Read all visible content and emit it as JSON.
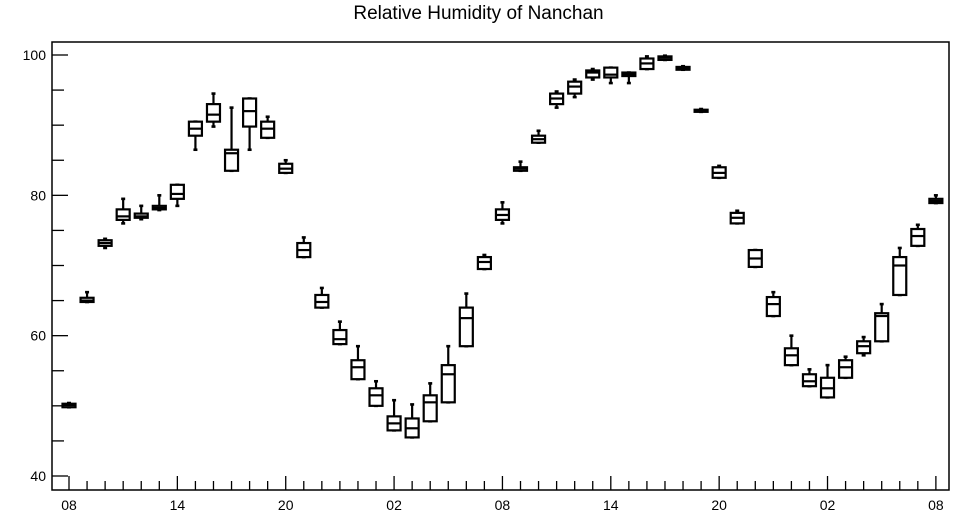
{
  "chart_data": {
    "type": "boxplot",
    "title": "Relative Humidity of Nanchan",
    "xlabel": "",
    "ylabel": "",
    "ylim": [
      38,
      102
    ],
    "yticks": [
      40,
      60,
      80,
      100
    ],
    "x_tick_labels": [
      "08",
      "14",
      "20",
      "02",
      "08",
      "14",
      "20",
      "02",
      "08"
    ],
    "x_tick_hours": [
      0,
      6,
      12,
      18,
      24,
      30,
      36,
      42,
      48
    ],
    "grid": false,
    "legend": "none",
    "series": [
      {
        "boxes": [
          {
            "hour": 0,
            "min": 49.8,
            "q1": 49.8,
            "median": 50.1,
            "q3": 50.3,
            "max": 50.4
          },
          {
            "hour": 1,
            "min": 64.8,
            "q1": 64.8,
            "median": 65.0,
            "q3": 65.4,
            "max": 66.2
          },
          {
            "hour": 2,
            "min": 72.5,
            "q1": 72.8,
            "median": 73.2,
            "q3": 73.6,
            "max": 73.8
          },
          {
            "hour": 3,
            "min": 76.0,
            "q1": 76.5,
            "median": 77.0,
            "q3": 78.0,
            "max": 79.5
          },
          {
            "hour": 4,
            "min": 76.6,
            "q1": 76.8,
            "median": 77.0,
            "q3": 77.4,
            "max": 78.5
          },
          {
            "hour": 5,
            "min": 77.9,
            "q1": 78.0,
            "median": 78.2,
            "q3": 78.5,
            "max": 80.0
          },
          {
            "hour": 6,
            "min": 78.5,
            "q1": 79.5,
            "median": 80.2,
            "q3": 81.5,
            "max": 81.5
          },
          {
            "hour": 7,
            "min": 86.5,
            "q1": 88.5,
            "median": 89.5,
            "q3": 90.5,
            "max": 90.5
          },
          {
            "hour": 8,
            "min": 89.8,
            "q1": 90.5,
            "median": 91.5,
            "q3": 93.0,
            "max": 94.5
          },
          {
            "hour": 9,
            "min": 83.5,
            "q1": 83.5,
            "median": 86.0,
            "q3": 86.5,
            "max": 92.5
          },
          {
            "hour": 10,
            "min": 86.5,
            "q1": 89.8,
            "median": 92.0,
            "q3": 93.8,
            "max": 93.8
          },
          {
            "hour": 11,
            "min": 88.2,
            "q1": 88.2,
            "median": 89.5,
            "q3": 90.5,
            "max": 91.2
          },
          {
            "hour": 12,
            "min": 83.2,
            "q1": 83.2,
            "median": 83.8,
            "q3": 84.5,
            "max": 85.0
          },
          {
            "hour": 13,
            "min": 71.2,
            "q1": 71.2,
            "median": 72.2,
            "q3": 73.2,
            "max": 74.0
          },
          {
            "hour": 14,
            "min": 64.0,
            "q1": 64.0,
            "median": 64.8,
            "q3": 65.8,
            "max": 66.8
          },
          {
            "hour": 15,
            "min": 58.8,
            "q1": 58.8,
            "median": 59.5,
            "q3": 60.8,
            "max": 62.0
          },
          {
            "hour": 16,
            "min": 53.8,
            "q1": 53.8,
            "median": 55.5,
            "q3": 56.5,
            "max": 58.5
          },
          {
            "hour": 17,
            "min": 50.0,
            "q1": 50.0,
            "median": 51.5,
            "q3": 52.5,
            "max": 53.5
          },
          {
            "hour": 18,
            "min": 46.5,
            "q1": 46.5,
            "median": 47.5,
            "q3": 48.5,
            "max": 50.8
          },
          {
            "hour": 19,
            "min": 45.5,
            "q1": 45.5,
            "median": 46.8,
            "q3": 48.2,
            "max": 50.2
          },
          {
            "hour": 20,
            "min": 47.8,
            "q1": 47.8,
            "median": 50.5,
            "q3": 51.5,
            "max": 53.2
          },
          {
            "hour": 21,
            "min": 50.5,
            "q1": 50.5,
            "median": 54.5,
            "q3": 55.8,
            "max": 58.5
          },
          {
            "hour": 22,
            "min": 58.5,
            "q1": 58.5,
            "median": 62.5,
            "q3": 64.0,
            "max": 66.0
          },
          {
            "hour": 23,
            "min": 69.5,
            "q1": 69.5,
            "median": 70.5,
            "q3": 71.2,
            "max": 71.5
          },
          {
            "hour": 24,
            "min": 76.0,
            "q1": 76.5,
            "median": 77.2,
            "q3": 78.0,
            "max": 79.0
          },
          {
            "hour": 25,
            "min": 83.5,
            "q1": 83.5,
            "median": 83.8,
            "q3": 84.0,
            "max": 84.8
          },
          {
            "hour": 26,
            "min": 87.5,
            "q1": 87.5,
            "median": 88.0,
            "q3": 88.5,
            "max": 89.2
          },
          {
            "hour": 27,
            "min": 92.5,
            "q1": 93.0,
            "median": 93.8,
            "q3": 94.5,
            "max": 94.8
          },
          {
            "hour": 28,
            "min": 94.0,
            "q1": 94.5,
            "median": 95.5,
            "q3": 96.2,
            "max": 96.5
          },
          {
            "hour": 29,
            "min": 96.5,
            "q1": 96.8,
            "median": 97.5,
            "q3": 97.8,
            "max": 98.0
          },
          {
            "hour": 30,
            "min": 96.0,
            "q1": 96.8,
            "median": 97.2,
            "q3": 98.2,
            "max": 98.2
          },
          {
            "hour": 31,
            "min": 96.0,
            "q1": 97.0,
            "median": 97.3,
            "q3": 97.5,
            "max": 97.5
          },
          {
            "hour": 32,
            "min": 98.0,
            "q1": 98.0,
            "median": 98.8,
            "q3": 99.5,
            "max": 99.8
          },
          {
            "hour": 33,
            "min": 99.3,
            "q1": 99.3,
            "median": 99.6,
            "q3": 99.8,
            "max": 99.9
          },
          {
            "hour": 34,
            "min": 97.9,
            "q1": 97.9,
            "median": 98.1,
            "q3": 98.3,
            "max": 98.4
          },
          {
            "hour": 35,
            "min": 91.9,
            "q1": 91.9,
            "median": 92.0,
            "q3": 92.2,
            "max": 92.3
          },
          {
            "hour": 36,
            "min": 82.5,
            "q1": 82.5,
            "median": 83.2,
            "q3": 84.0,
            "max": 84.2
          },
          {
            "hour": 37,
            "min": 76.0,
            "q1": 76.0,
            "median": 76.8,
            "q3": 77.5,
            "max": 77.8
          },
          {
            "hour": 38,
            "min": 69.8,
            "q1": 69.8,
            "median": 71.0,
            "q3": 72.2,
            "max": 72.2
          },
          {
            "hour": 39,
            "min": 62.8,
            "q1": 62.8,
            "median": 64.5,
            "q3": 65.5,
            "max": 66.2
          },
          {
            "hour": 40,
            "min": 55.8,
            "q1": 55.8,
            "median": 57.2,
            "q3": 58.2,
            "max": 60.0
          },
          {
            "hour": 41,
            "min": 52.8,
            "q1": 52.8,
            "median": 53.5,
            "q3": 54.5,
            "max": 55.2
          },
          {
            "hour": 42,
            "min": 51.2,
            "q1": 51.2,
            "median": 52.5,
            "q3": 54.0,
            "max": 55.8
          },
          {
            "hour": 43,
            "min": 54.0,
            "q1": 54.0,
            "median": 55.5,
            "q3": 56.5,
            "max": 57.0
          },
          {
            "hour": 44,
            "min": 57.2,
            "q1": 57.5,
            "median": 58.5,
            "q3": 59.2,
            "max": 59.8
          },
          {
            "hour": 45,
            "min": 59.2,
            "q1": 59.2,
            "median": 62.8,
            "q3": 63.2,
            "max": 64.5
          },
          {
            "hour": 46,
            "min": 65.8,
            "q1": 65.8,
            "median": 70.0,
            "q3": 71.2,
            "max": 72.5
          },
          {
            "hour": 47,
            "min": 72.8,
            "q1": 72.8,
            "median": 74.2,
            "q3": 75.2,
            "max": 75.8
          },
          {
            "hour": 48,
            "min": 78.9,
            "q1": 78.9,
            "median": 79.2,
            "q3": 79.5,
            "max": 80.0
          }
        ]
      }
    ]
  }
}
